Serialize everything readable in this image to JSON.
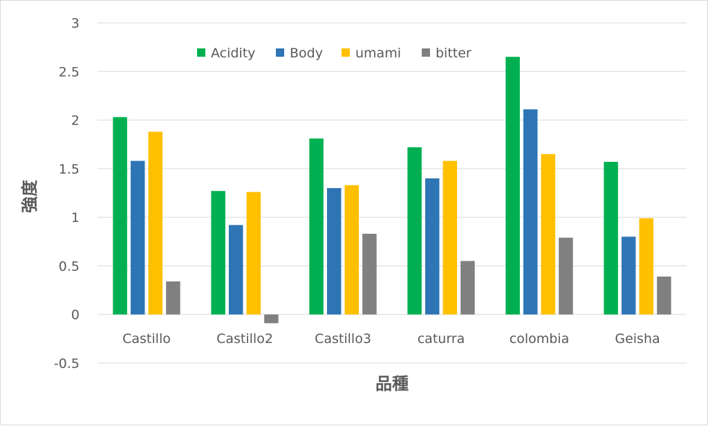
{
  "chart_data": {
    "type": "bar",
    "xlabel": "品種",
    "ylabel": "強度",
    "ylim": [
      -0.5,
      3
    ],
    "yticks": [
      -0.5,
      0,
      0.5,
      1,
      1.5,
      2,
      2.5,
      3
    ],
    "ytick_labels": [
      "-0.5",
      "0",
      "0.5",
      "1",
      "1.5",
      "2",
      "2.5",
      "3"
    ],
    "grid": true,
    "legend_position": "top",
    "categories": [
      "Castillo",
      "Castillo2",
      "Castillo3",
      "caturra",
      "colombia",
      "Geisha"
    ],
    "series": [
      {
        "name": "Acidity",
        "color": "#00b050",
        "values": [
          2.03,
          1.27,
          1.81,
          1.72,
          2.65,
          1.57
        ]
      },
      {
        "name": "Body",
        "color": "#2e75b6",
        "values": [
          1.58,
          0.92,
          1.3,
          1.4,
          2.11,
          0.8
        ]
      },
      {
        "name": "umami",
        "color": "#ffc000",
        "values": [
          1.88,
          1.26,
          1.33,
          1.58,
          1.65,
          0.99
        ]
      },
      {
        "name": "bitter",
        "color": "#808080",
        "values": [
          0.34,
          -0.09,
          0.83,
          0.55,
          0.79,
          0.39
        ]
      }
    ]
  }
}
